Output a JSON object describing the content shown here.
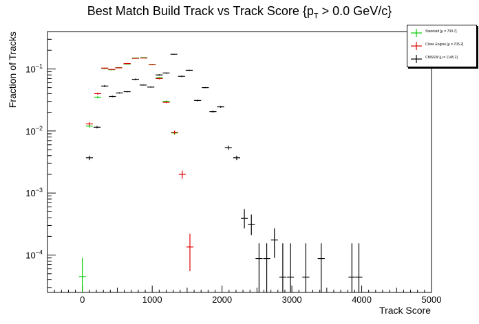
{
  "chart_data": {
    "type": "scatter",
    "title_main": "Best Match Build Track vs Track Score {p",
    "title_sub": "T",
    "title_tail": " > 0.0 GeV/c}",
    "xlabel": "Track Score",
    "ylabel": "Fraction of Tracks",
    "xlim": [
      -500,
      5000
    ],
    "ylim": [
      2.5e-05,
      0.4
    ],
    "y_scale": "log",
    "grid": false,
    "legend_position": "top-right",
    "x_ticks": [
      0,
      1000,
      2000,
      3000,
      4000,
      5000
    ],
    "x_tick_labels": [
      "0",
      "1000",
      "2000",
      "3000",
      "4000",
      "5000"
    ],
    "y_ticks": [
      0.0001,
      0.001,
      0.01,
      0.1
    ],
    "y_tick_labels": [
      {
        "base": "10",
        "exp": "−4"
      },
      {
        "base": "10",
        "exp": "−3"
      },
      {
        "base": "10",
        "exp": "−2"
      },
      {
        "base": "10",
        "exp": "−1"
      }
    ],
    "bin_width": 100,
    "series": [
      {
        "name": "Standard",
        "legend": "Standard  [μ = 709.7]",
        "color": "#00cc00",
        "points": [
          {
            "x": 0,
            "y": 4.5e-05,
            "lo": 2.5e-05,
            "hi": 9e-05
          },
          {
            "x": 100,
            "y": 0.012,
            "lo": 0.0113,
            "hi": 0.0127
          },
          {
            "x": 220,
            "y": 0.035,
            "lo": 0.0335,
            "hi": 0.0365
          },
          {
            "x": 320,
            "y": 0.102,
            "lo": 0.1,
            "hi": 0.104
          },
          {
            "x": 420,
            "y": 0.097,
            "lo": 0.095,
            "hi": 0.099
          },
          {
            "x": 520,
            "y": 0.105,
            "lo": 0.103,
            "hi": 0.107
          },
          {
            "x": 640,
            "y": 0.12,
            "lo": 0.118,
            "hi": 0.122
          },
          {
            "x": 760,
            "y": 0.15,
            "lo": 0.148,
            "hi": 0.152
          },
          {
            "x": 880,
            "y": 0.152,
            "lo": 0.15,
            "hi": 0.154
          },
          {
            "x": 1000,
            "y": 0.118,
            "lo": 0.116,
            "hi": 0.12
          },
          {
            "x": 1100,
            "y": 0.072,
            "lo": 0.07,
            "hi": 0.074
          },
          {
            "x": 1200,
            "y": 0.03,
            "lo": 0.029,
            "hi": 0.031
          },
          {
            "x": 1320,
            "y": 0.0093,
            "lo": 0.0087,
            "hi": 0.0099
          }
        ]
      },
      {
        "name": "Clone Engine",
        "legend": "Clone Engine  [μ = 705.2]",
        "color": "#dd0000",
        "points": [
          {
            "x": 100,
            "y": 0.013,
            "lo": 0.0122,
            "hi": 0.0138
          },
          {
            "x": 220,
            "y": 0.04,
            "lo": 0.0385,
            "hi": 0.0415
          },
          {
            "x": 320,
            "y": 0.103,
            "lo": 0.101,
            "hi": 0.105
          },
          {
            "x": 420,
            "y": 0.098,
            "lo": 0.096,
            "hi": 0.1
          },
          {
            "x": 520,
            "y": 0.104,
            "lo": 0.102,
            "hi": 0.106
          },
          {
            "x": 640,
            "y": 0.122,
            "lo": 0.12,
            "hi": 0.124
          },
          {
            "x": 760,
            "y": 0.148,
            "lo": 0.146,
            "hi": 0.15
          },
          {
            "x": 880,
            "y": 0.15,
            "lo": 0.148,
            "hi": 0.152
          },
          {
            "x": 1000,
            "y": 0.117,
            "lo": 0.115,
            "hi": 0.119
          },
          {
            "x": 1100,
            "y": 0.07,
            "lo": 0.068,
            "hi": 0.072
          },
          {
            "x": 1200,
            "y": 0.029,
            "lo": 0.028,
            "hi": 0.03
          },
          {
            "x": 1320,
            "y": 0.0095,
            "lo": 0.0089,
            "hi": 0.0101
          },
          {
            "x": 1430,
            "y": 0.002,
            "lo": 0.0017,
            "hi": 0.0023
          },
          {
            "x": 1540,
            "y": 0.000135,
            "lo": 5.5e-05,
            "hi": 0.00022
          }
        ]
      },
      {
        "name": "CMSSW",
        "legend": "CMSSW  [μ = 1145.2]",
        "color": "#000000",
        "points": [
          {
            "x": 100,
            "y": 0.0037,
            "lo": 0.0034,
            "hi": 0.004
          },
          {
            "x": 210,
            "y": 0.0115,
            "lo": 0.011,
            "hi": 0.012
          },
          {
            "x": 320,
            "y": 0.053,
            "lo": 0.051,
            "hi": 0.055
          },
          {
            "x": 430,
            "y": 0.036,
            "lo": 0.035,
            "hi": 0.037
          },
          {
            "x": 530,
            "y": 0.041,
            "lo": 0.04,
            "hi": 0.042
          },
          {
            "x": 640,
            "y": 0.043,
            "lo": 0.042,
            "hi": 0.044
          },
          {
            "x": 760,
            "y": 0.068,
            "lo": 0.066,
            "hi": 0.07
          },
          {
            "x": 870,
            "y": 0.055,
            "lo": 0.054,
            "hi": 0.056
          },
          {
            "x": 980,
            "y": 0.051,
            "lo": 0.05,
            "hi": 0.052
          },
          {
            "x": 1100,
            "y": 0.08,
            "lo": 0.078,
            "hi": 0.082
          },
          {
            "x": 1200,
            "y": 0.086,
            "lo": 0.084,
            "hi": 0.088
          },
          {
            "x": 1310,
            "y": 0.172,
            "lo": 0.169,
            "hi": 0.175
          },
          {
            "x": 1420,
            "y": 0.076,
            "lo": 0.074,
            "hi": 0.078
          },
          {
            "x": 1530,
            "y": 0.095,
            "lo": 0.093,
            "hi": 0.097
          },
          {
            "x": 1650,
            "y": 0.031,
            "lo": 0.03,
            "hi": 0.032
          },
          {
            "x": 1760,
            "y": 0.05,
            "lo": 0.049,
            "hi": 0.051
          },
          {
            "x": 1870,
            "y": 0.0205,
            "lo": 0.0198,
            "hi": 0.0212
          },
          {
            "x": 1980,
            "y": 0.0245,
            "lo": 0.0237,
            "hi": 0.0253
          },
          {
            "x": 2090,
            "y": 0.0054,
            "lo": 0.005,
            "hi": 0.0058
          },
          {
            "x": 2210,
            "y": 0.0037,
            "lo": 0.0034,
            "hi": 0.004
          },
          {
            "x": 2320,
            "y": 0.00039,
            "lo": 0.00027,
            "hi": 0.00055
          },
          {
            "x": 2420,
            "y": 0.00031,
            "lo": 0.00021,
            "hi": 0.00045
          },
          {
            "x": 2530,
            "y": 8.8e-05,
            "lo": 2.5e-05,
            "hi": 0.000155
          },
          {
            "x": 2640,
            "y": 8.8e-05,
            "lo": 2.5e-05,
            "hi": 0.000155
          },
          {
            "x": 2750,
            "y": 0.000175,
            "lo": 9e-05,
            "hi": 0.00027
          },
          {
            "x": 2870,
            "y": 4.4e-05,
            "lo": 2.5e-05,
            "hi": 0.000155
          },
          {
            "x": 2980,
            "y": 4.4e-05,
            "lo": 2.5e-05,
            "hi": 0.000155
          },
          {
            "x": 3200,
            "y": 4.4e-05,
            "lo": 2.5e-05,
            "hi": 0.000155
          },
          {
            "x": 3420,
            "y": 8.8e-05,
            "lo": 2.5e-05,
            "hi": 0.000155
          },
          {
            "x": 3860,
            "y": 4.4e-05,
            "lo": 2.5e-05,
            "hi": 0.000155
          },
          {
            "x": 3960,
            "y": 4.4e-05,
            "lo": 2.5e-05,
            "hi": 0.000155
          }
        ]
      }
    ]
  }
}
